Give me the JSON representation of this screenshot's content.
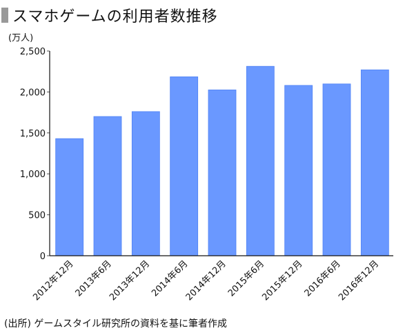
{
  "title": "スマホゲームの利用者数推移",
  "unit_label": "(万人)",
  "source": "(出所) ゲームスタイル研究所の資料を基に筆者作成",
  "colors": {
    "bar": "#6a98ff",
    "bar_edge": "#4f82f5",
    "title_mark": "#999999"
  },
  "chart_data": {
    "type": "bar",
    "title": "スマホゲームの利用者数推移",
    "xlabel": "",
    "ylabel": "(万人)",
    "categories": [
      "2012年12月",
      "2013年6月",
      "2013年12月",
      "2014年6月",
      "2014年12月",
      "2015年6月",
      "2015年12月",
      "2016年6月",
      "2016年12月"
    ],
    "values": [
      1430,
      1700,
      1760,
      2185,
      2025,
      2313,
      2080,
      2098,
      2270
    ],
    "ylim": [
      0,
      2500
    ],
    "yticks": [
      0,
      500,
      1000,
      1500,
      2000,
      2500
    ],
    "ytick_labels": [
      "0",
      "500",
      "1,000",
      "1,500",
      "2,000",
      "2,500"
    ],
    "grid": false,
    "legend": "none"
  }
}
